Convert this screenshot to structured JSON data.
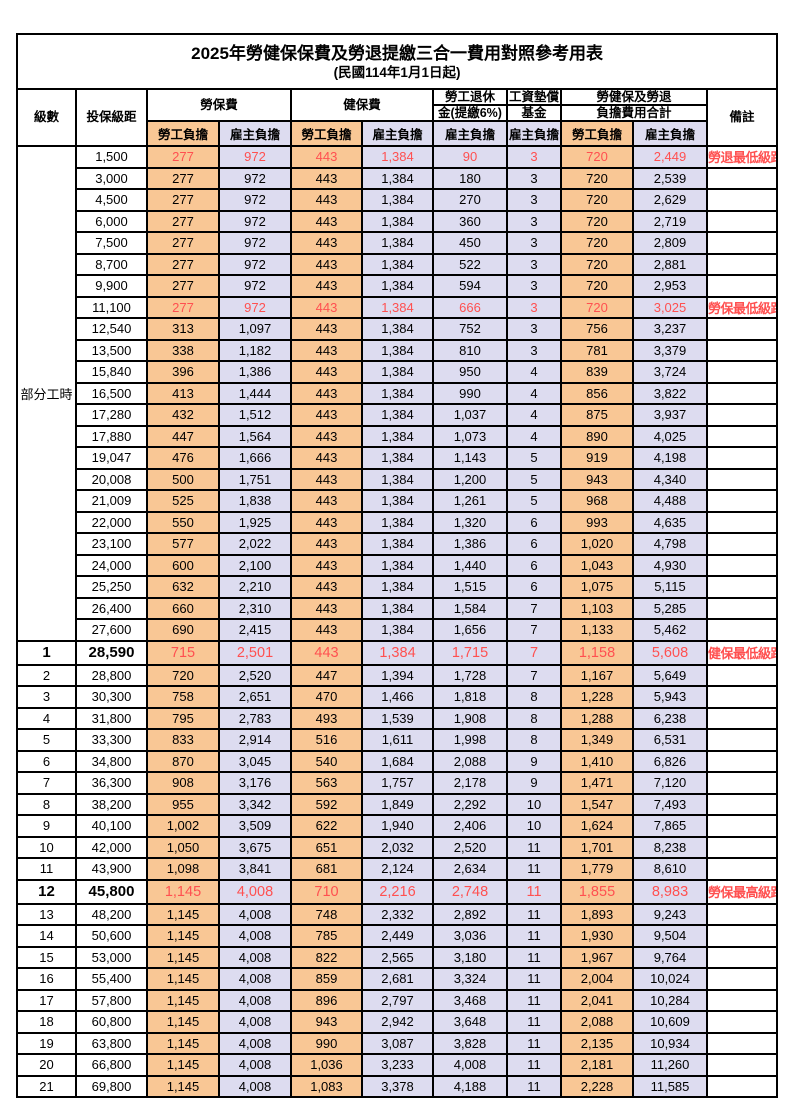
{
  "title": "2025年勞健保保費及勞退提繳三合一費用對照參考用表",
  "subtitle": "(民國114年1月1日起)",
  "colors": {
    "employee_col_bg": "#F9C795",
    "employer_col_bg": "#DDDCF0",
    "highlight_text": "#FF5050",
    "border": "#000000"
  },
  "header": {
    "level": "級數",
    "bracket": "投保級距",
    "labor_group": "勞保費",
    "health_group": "健保費",
    "pension_line1": "勞工退休",
    "pension_line2": "金(提繳6%)",
    "wage_fund_line1": "工資墊償",
    "wage_fund_line2": "基金",
    "total_line1": "勞健保及勞退",
    "total_line2": "負擔費用合計",
    "employee": "勞工負擔",
    "employer": "雇主負擔",
    "remark": "備註"
  },
  "part_time_label": "部分工時",
  "part_time_rowspan": 23,
  "rows": [
    {
      "level": "",
      "bracket": "1,500",
      "values": [
        "277",
        "972",
        "443",
        "1,384",
        "90",
        "3",
        "720",
        "2,449"
      ],
      "remark": "勞退最低級距",
      "red": true,
      "bold": false
    },
    {
      "level": "",
      "bracket": "3,000",
      "values": [
        "277",
        "972",
        "443",
        "1,384",
        "180",
        "3",
        "720",
        "2,539"
      ],
      "remark": "",
      "red": false,
      "bold": false
    },
    {
      "level": "",
      "bracket": "4,500",
      "values": [
        "277",
        "972",
        "443",
        "1,384",
        "270",
        "3",
        "720",
        "2,629"
      ],
      "remark": "",
      "red": false,
      "bold": false
    },
    {
      "level": "",
      "bracket": "6,000",
      "values": [
        "277",
        "972",
        "443",
        "1,384",
        "360",
        "3",
        "720",
        "2,719"
      ],
      "remark": "",
      "red": false,
      "bold": false
    },
    {
      "level": "",
      "bracket": "7,500",
      "values": [
        "277",
        "972",
        "443",
        "1,384",
        "450",
        "3",
        "720",
        "2,809"
      ],
      "remark": "",
      "red": false,
      "bold": false
    },
    {
      "level": "",
      "bracket": "8,700",
      "values": [
        "277",
        "972",
        "443",
        "1,384",
        "522",
        "3",
        "720",
        "2,881"
      ],
      "remark": "",
      "red": false,
      "bold": false
    },
    {
      "level": "",
      "bracket": "9,900",
      "values": [
        "277",
        "972",
        "443",
        "1,384",
        "594",
        "3",
        "720",
        "2,953"
      ],
      "remark": "",
      "red": false,
      "bold": false
    },
    {
      "level": "",
      "bracket": "11,100",
      "values": [
        "277",
        "972",
        "443",
        "1,384",
        "666",
        "3",
        "720",
        "3,025"
      ],
      "remark": "勞保最低級距",
      "red": true,
      "bold": false
    },
    {
      "level": "",
      "bracket": "12,540",
      "values": [
        "313",
        "1,097",
        "443",
        "1,384",
        "752",
        "3",
        "756",
        "3,237"
      ],
      "remark": "",
      "red": false,
      "bold": false
    },
    {
      "level": "",
      "bracket": "13,500",
      "values": [
        "338",
        "1,182",
        "443",
        "1,384",
        "810",
        "3",
        "781",
        "3,379"
      ],
      "remark": "",
      "red": false,
      "bold": false
    },
    {
      "level": "",
      "bracket": "15,840",
      "values": [
        "396",
        "1,386",
        "443",
        "1,384",
        "950",
        "4",
        "839",
        "3,724"
      ],
      "remark": "",
      "red": false,
      "bold": false
    },
    {
      "level": "",
      "bracket": "16,500",
      "values": [
        "413",
        "1,444",
        "443",
        "1,384",
        "990",
        "4",
        "856",
        "3,822"
      ],
      "remark": "",
      "red": false,
      "bold": false
    },
    {
      "level": "",
      "bracket": "17,280",
      "values": [
        "432",
        "1,512",
        "443",
        "1,384",
        "1,037",
        "4",
        "875",
        "3,937"
      ],
      "remark": "",
      "red": false,
      "bold": false
    },
    {
      "level": "",
      "bracket": "17,880",
      "values": [
        "447",
        "1,564",
        "443",
        "1,384",
        "1,073",
        "4",
        "890",
        "4,025"
      ],
      "remark": "",
      "red": false,
      "bold": false
    },
    {
      "level": "",
      "bracket": "19,047",
      "values": [
        "476",
        "1,666",
        "443",
        "1,384",
        "1,143",
        "5",
        "919",
        "4,198"
      ],
      "remark": "",
      "red": false,
      "bold": false
    },
    {
      "level": "",
      "bracket": "20,008",
      "values": [
        "500",
        "1,751",
        "443",
        "1,384",
        "1,200",
        "5",
        "943",
        "4,340"
      ],
      "remark": "",
      "red": false,
      "bold": false
    },
    {
      "level": "",
      "bracket": "21,009",
      "values": [
        "525",
        "1,838",
        "443",
        "1,384",
        "1,261",
        "5",
        "968",
        "4,488"
      ],
      "remark": "",
      "red": false,
      "bold": false
    },
    {
      "level": "",
      "bracket": "22,000",
      "values": [
        "550",
        "1,925",
        "443",
        "1,384",
        "1,320",
        "6",
        "993",
        "4,635"
      ],
      "remark": "",
      "red": false,
      "bold": false
    },
    {
      "level": "",
      "bracket": "23,100",
      "values": [
        "577",
        "2,022",
        "443",
        "1,384",
        "1,386",
        "6",
        "1,020",
        "4,798"
      ],
      "remark": "",
      "red": false,
      "bold": false
    },
    {
      "level": "",
      "bracket": "24,000",
      "values": [
        "600",
        "2,100",
        "443",
        "1,384",
        "1,440",
        "6",
        "1,043",
        "4,930"
      ],
      "remark": "",
      "red": false,
      "bold": false
    },
    {
      "level": "",
      "bracket": "25,250",
      "values": [
        "632",
        "2,210",
        "443",
        "1,384",
        "1,515",
        "6",
        "1,075",
        "5,115"
      ],
      "remark": "",
      "red": false,
      "bold": false
    },
    {
      "level": "",
      "bracket": "26,400",
      "values": [
        "660",
        "2,310",
        "443",
        "1,384",
        "1,584",
        "7",
        "1,103",
        "5,285"
      ],
      "remark": "",
      "red": false,
      "bold": false
    },
    {
      "level": "",
      "bracket": "27,600",
      "values": [
        "690",
        "2,415",
        "443",
        "1,384",
        "1,656",
        "7",
        "1,133",
        "5,462"
      ],
      "remark": "",
      "red": false,
      "bold": false
    },
    {
      "level": "1",
      "bracket": "28,590",
      "values": [
        "715",
        "2,501",
        "443",
        "1,384",
        "1,715",
        "7",
        "1,158",
        "5,608"
      ],
      "remark": "健保最低級距",
      "red": true,
      "bold": true
    },
    {
      "level": "2",
      "bracket": "28,800",
      "values": [
        "720",
        "2,520",
        "447",
        "1,394",
        "1,728",
        "7",
        "1,167",
        "5,649"
      ],
      "remark": "",
      "red": false,
      "bold": false
    },
    {
      "level": "3",
      "bracket": "30,300",
      "values": [
        "758",
        "2,651",
        "470",
        "1,466",
        "1,818",
        "8",
        "1,228",
        "5,943"
      ],
      "remark": "",
      "red": false,
      "bold": false
    },
    {
      "level": "4",
      "bracket": "31,800",
      "values": [
        "795",
        "2,783",
        "493",
        "1,539",
        "1,908",
        "8",
        "1,288",
        "6,238"
      ],
      "remark": "",
      "red": false,
      "bold": false
    },
    {
      "level": "5",
      "bracket": "33,300",
      "values": [
        "833",
        "2,914",
        "516",
        "1,611",
        "1,998",
        "8",
        "1,349",
        "6,531"
      ],
      "remark": "",
      "red": false,
      "bold": false
    },
    {
      "level": "6",
      "bracket": "34,800",
      "values": [
        "870",
        "3,045",
        "540",
        "1,684",
        "2,088",
        "9",
        "1,410",
        "6,826"
      ],
      "remark": "",
      "red": false,
      "bold": false
    },
    {
      "level": "7",
      "bracket": "36,300",
      "values": [
        "908",
        "3,176",
        "563",
        "1,757",
        "2,178",
        "9",
        "1,471",
        "7,120"
      ],
      "remark": "",
      "red": false,
      "bold": false
    },
    {
      "level": "8",
      "bracket": "38,200",
      "values": [
        "955",
        "3,342",
        "592",
        "1,849",
        "2,292",
        "10",
        "1,547",
        "7,493"
      ],
      "remark": "",
      "red": false,
      "bold": false
    },
    {
      "level": "9",
      "bracket": "40,100",
      "values": [
        "1,002",
        "3,509",
        "622",
        "1,940",
        "2,406",
        "10",
        "1,624",
        "7,865"
      ],
      "remark": "",
      "red": false,
      "bold": false
    },
    {
      "level": "10",
      "bracket": "42,000",
      "values": [
        "1,050",
        "3,675",
        "651",
        "2,032",
        "2,520",
        "11",
        "1,701",
        "8,238"
      ],
      "remark": "",
      "red": false,
      "bold": false
    },
    {
      "level": "11",
      "bracket": "43,900",
      "values": [
        "1,098",
        "3,841",
        "681",
        "2,124",
        "2,634",
        "11",
        "1,779",
        "8,610"
      ],
      "remark": "",
      "red": false,
      "bold": false
    },
    {
      "level": "12",
      "bracket": "45,800",
      "values": [
        "1,145",
        "4,008",
        "710",
        "2,216",
        "2,748",
        "11",
        "1,855",
        "8,983"
      ],
      "remark": "勞保最高級距",
      "red": true,
      "bold": true
    },
    {
      "level": "13",
      "bracket": "48,200",
      "values": [
        "1,145",
        "4,008",
        "748",
        "2,332",
        "2,892",
        "11",
        "1,893",
        "9,243"
      ],
      "remark": "",
      "red": false,
      "bold": false
    },
    {
      "level": "14",
      "bracket": "50,600",
      "values": [
        "1,145",
        "4,008",
        "785",
        "2,449",
        "3,036",
        "11",
        "1,930",
        "9,504"
      ],
      "remark": "",
      "red": false,
      "bold": false
    },
    {
      "level": "15",
      "bracket": "53,000",
      "values": [
        "1,145",
        "4,008",
        "822",
        "2,565",
        "3,180",
        "11",
        "1,967",
        "9,764"
      ],
      "remark": "",
      "red": false,
      "bold": false
    },
    {
      "level": "16",
      "bracket": "55,400",
      "values": [
        "1,145",
        "4,008",
        "859",
        "2,681",
        "3,324",
        "11",
        "2,004",
        "10,024"
      ],
      "remark": "",
      "red": false,
      "bold": false
    },
    {
      "level": "17",
      "bracket": "57,800",
      "values": [
        "1,145",
        "4,008",
        "896",
        "2,797",
        "3,468",
        "11",
        "2,041",
        "10,284"
      ],
      "remark": "",
      "red": false,
      "bold": false
    },
    {
      "level": "18",
      "bracket": "60,800",
      "values": [
        "1,145",
        "4,008",
        "943",
        "2,942",
        "3,648",
        "11",
        "2,088",
        "10,609"
      ],
      "remark": "",
      "red": false,
      "bold": false
    },
    {
      "level": "19",
      "bracket": "63,800",
      "values": [
        "1,145",
        "4,008",
        "990",
        "3,087",
        "3,828",
        "11",
        "2,135",
        "10,934"
      ],
      "remark": "",
      "red": false,
      "bold": false
    },
    {
      "level": "20",
      "bracket": "66,800",
      "values": [
        "1,145",
        "4,008",
        "1,036",
        "3,233",
        "4,008",
        "11",
        "2,181",
        "11,260"
      ],
      "remark": "",
      "red": false,
      "bold": false
    },
    {
      "level": "21",
      "bracket": "69,800",
      "values": [
        "1,145",
        "4,008",
        "1,083",
        "3,378",
        "4,188",
        "11",
        "2,228",
        "11,585"
      ],
      "remark": "",
      "red": false,
      "bold": false
    }
  ]
}
